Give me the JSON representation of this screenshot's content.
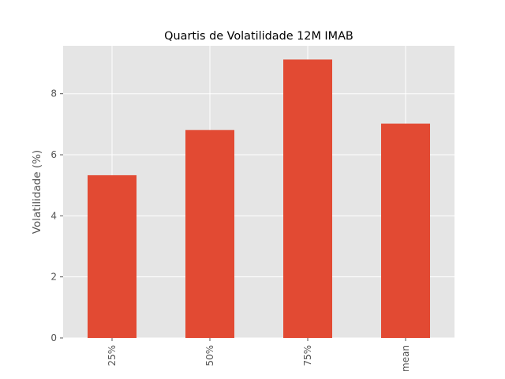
{
  "chart_data": {
    "type": "bar",
    "title": "Quartis de Volatilidade 12M IMAB",
    "xlabel": "",
    "ylabel": "Volatilidade (%)",
    "categories": [
      "25%",
      "50%",
      "75%",
      "mean"
    ],
    "values": [
      5.33,
      6.81,
      9.12,
      7.02
    ],
    "ylim": [
      0,
      9.57
    ],
    "yticks": [
      0,
      2,
      4,
      6,
      8
    ],
    "grid": true,
    "colors": {
      "bar": "#E24A33",
      "plot_background": "#E5E5E5",
      "grid": "#FFFFFF"
    }
  }
}
